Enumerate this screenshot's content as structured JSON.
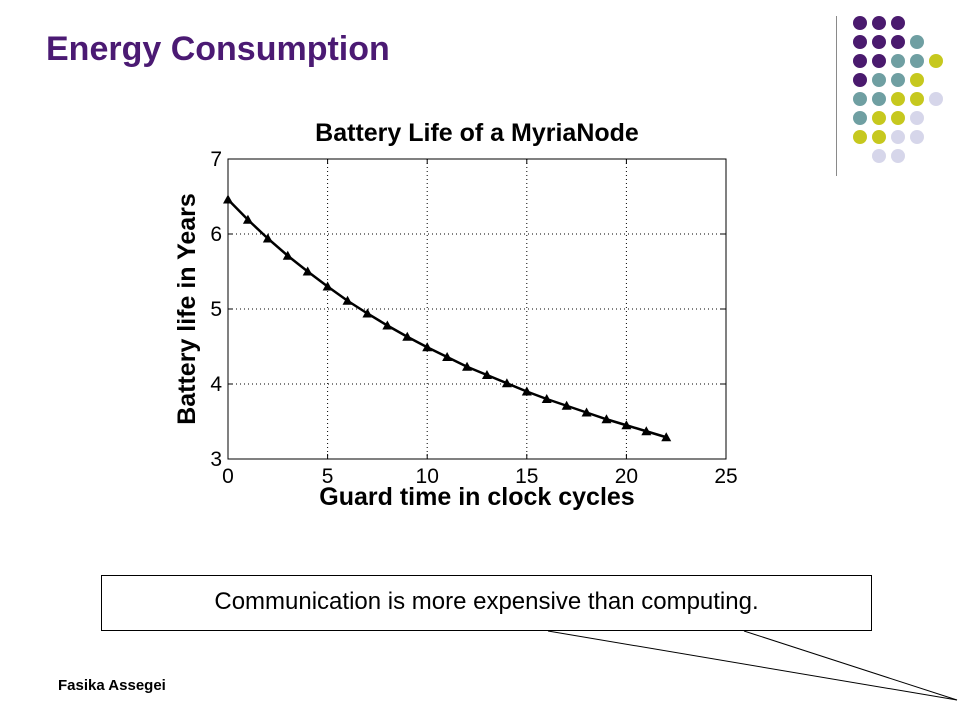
{
  "slide": {
    "title": "Energy Consumption",
    "callout": "Communication is more expensive than computing.",
    "footer": "Fasika Assegei"
  },
  "colors": {
    "title": "#4b1a73",
    "purple": "#4a1a6e",
    "teal": "#6f9fa2",
    "olive": "#c6c81e",
    "lavender": "#d6d6ea",
    "line": "#000000"
  },
  "decoration": {
    "dot_pattern": [
      [
        "purple",
        "purple",
        "purple"
      ],
      [
        "purple",
        "purple",
        "purple",
        "teal"
      ],
      [
        "purple",
        "purple",
        "teal",
        "teal",
        "olive"
      ],
      [
        "purple",
        "teal",
        "teal",
        "olive"
      ],
      [
        "teal",
        "teal",
        "olive",
        "olive",
        "lavender"
      ],
      [
        "teal",
        "olive",
        "olive",
        "lavender"
      ],
      [
        "olive",
        "olive",
        "lavender",
        "lavender"
      ],
      [
        "lavender",
        "lavender"
      ]
    ]
  },
  "chart_data": {
    "type": "line",
    "title": "Battery Life of a MyriaNode",
    "xlabel": "Guard time in clock cycles",
    "ylabel": "Battery life in Years",
    "xlim": [
      0,
      25
    ],
    "ylim": [
      3,
      7
    ],
    "xticks": [
      0,
      5,
      10,
      15,
      20,
      25
    ],
    "yticks": [
      3,
      4,
      5,
      6,
      7
    ],
    "grid": true,
    "grid_style": "dotted",
    "marker": "triangle",
    "series": [
      {
        "x": [
          0,
          1,
          2,
          3,
          4,
          5,
          6,
          7,
          8,
          9,
          10,
          11,
          12,
          13,
          14,
          15,
          16,
          17,
          18,
          19,
          20,
          21,
          22
        ],
        "values": [
          6.46,
          6.19,
          5.94,
          5.71,
          5.5,
          5.3,
          5.11,
          4.94,
          4.78,
          4.63,
          4.49,
          4.36,
          4.23,
          4.12,
          4.01,
          3.9,
          3.8,
          3.71,
          3.62,
          3.53,
          3.45,
          3.37,
          3.29
        ]
      }
    ]
  }
}
